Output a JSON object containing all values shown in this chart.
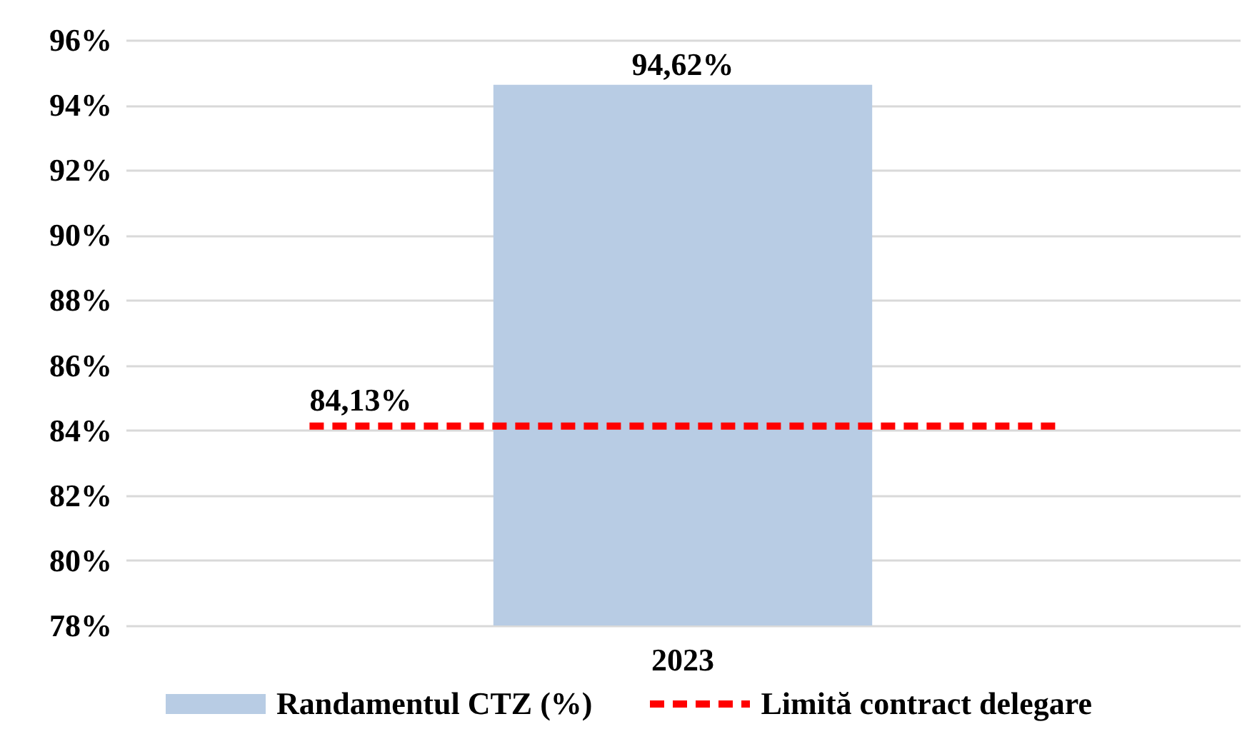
{
  "chart_data": {
    "type": "bar",
    "categories": [
      "2023"
    ],
    "ylim": [
      78,
      96
    ],
    "yticks": [
      {
        "value": 78,
        "label": "78%"
      },
      {
        "value": 80,
        "label": "80%"
      },
      {
        "value": 82,
        "label": "82%"
      },
      {
        "value": 84,
        "label": "84%"
      },
      {
        "value": 86,
        "label": "86%"
      },
      {
        "value": 88,
        "label": "88%"
      },
      {
        "value": 90,
        "label": "90%"
      },
      {
        "value": 92,
        "label": "92%"
      },
      {
        "value": 94,
        "label": "94%"
      },
      {
        "value": 96,
        "label": "96%"
      }
    ],
    "grid": "y",
    "legend": "bottom",
    "series": [
      {
        "name": "Randamentul CTZ (%)",
        "color": "#b8cce4",
        "values": [
          94.62
        ],
        "value_labels": [
          "94,62%"
        ]
      }
    ],
    "ref_lines": [
      {
        "axis": "y",
        "value": 84.13,
        "label": "84,13%",
        "color": "#ff0000",
        "line_style": "dashed"
      }
    ],
    "annotations": [
      "Limită contract delegare"
    ]
  }
}
